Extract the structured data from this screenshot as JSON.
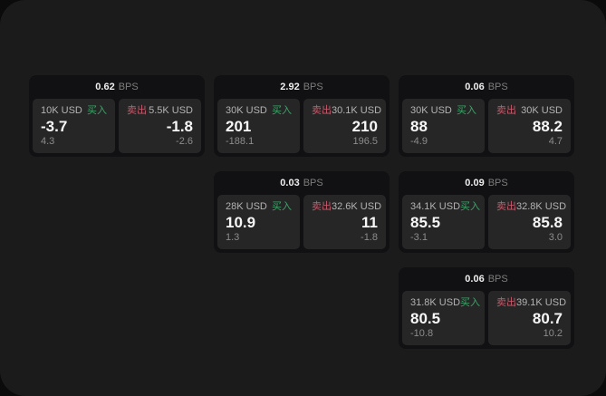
{
  "colors": {
    "buy": "#3EA46A",
    "sell": "#C75A6C",
    "panel_bg": "#1b1b1b",
    "card_bg": "#111113",
    "side_bg": "#262626"
  },
  "labels": {
    "buy": "买入",
    "sell": "卖出",
    "bps_unit": "BPS"
  },
  "cards": [
    {
      "bps": "0.62",
      "buy": {
        "notional": "10K USD",
        "price": "-3.7",
        "delta": "4.3"
      },
      "sell": {
        "notional": "5.5K USD",
        "price": "-1.8",
        "delta": "-2.6"
      }
    },
    {
      "bps": "2.92",
      "buy": {
        "notional": "30K USD",
        "price": "201",
        "delta": "-188.1"
      },
      "sell": {
        "notional": "30.1K USD",
        "price": "210",
        "delta": "196.5"
      }
    },
    {
      "bps": "0.06",
      "buy": {
        "notional": "30K USD",
        "price": "88",
        "delta": "-4.9"
      },
      "sell": {
        "notional": "30K USD",
        "price": "88.2",
        "delta": "4.7"
      }
    },
    {
      "bps": "0.03",
      "buy": {
        "notional": "28K USD",
        "price": "10.9",
        "delta": "1.3"
      },
      "sell": {
        "notional": "32.6K USD",
        "price": "11",
        "delta": "-1.8"
      }
    },
    {
      "bps": "0.09",
      "buy": {
        "notional": "34.1K USD",
        "price": "85.5",
        "delta": "-3.1"
      },
      "sell": {
        "notional": "32.8K USD",
        "price": "85.8",
        "delta": "3.0"
      }
    },
    {
      "bps": "0.06",
      "buy": {
        "notional": "31.8K USD",
        "price": "80.5",
        "delta": "-10.8"
      },
      "sell": {
        "notional": "39.1K USD",
        "price": "80.7",
        "delta": "10.2"
      }
    }
  ]
}
